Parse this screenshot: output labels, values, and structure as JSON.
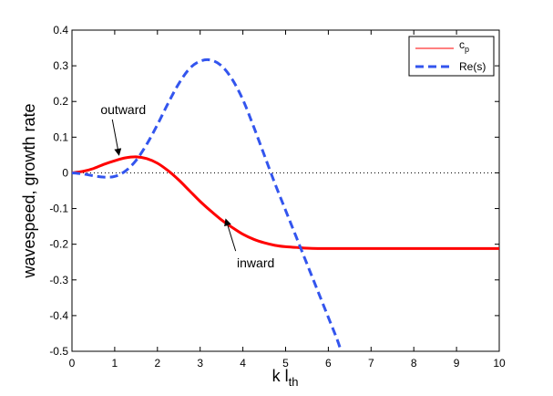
{
  "chart_data": {
    "type": "line",
    "title": "",
    "xlabel": "k l",
    "xlabel_sub": "th",
    "ylabel": "wavespeed, growth rate",
    "xlim": [
      0,
      10
    ],
    "ylim": [
      -0.5,
      0.4
    ],
    "xticks": [
      0,
      1,
      2,
      3,
      4,
      5,
      6,
      7,
      8,
      9,
      10
    ],
    "yticks": [
      -0.5,
      -0.4,
      -0.3,
      -0.2,
      -0.1,
      0,
      0.1,
      0.2,
      0.3,
      0.4
    ],
    "xtick_labels": [
      "0",
      "1",
      "2",
      "3",
      "4",
      "5",
      "6",
      "7",
      "8",
      "9",
      "10"
    ],
    "ytick_labels": [
      "-0.5",
      "-0.4",
      "-0.3",
      "-0.2",
      "-0.1",
      "0",
      "0.1",
      "0.2",
      "0.3",
      "0.4"
    ],
    "grid": false,
    "zero_line": "dotted",
    "legend_position": "top-right",
    "series": [
      {
        "name": "c",
        "name_sub": "p",
        "style": "solid",
        "color": "#ff0000",
        "x": [
          0,
          0.25,
          0.5,
          0.75,
          1.0,
          1.25,
          1.5,
          1.75,
          2.0,
          2.25,
          2.5,
          2.75,
          3.0,
          3.25,
          3.5,
          3.75,
          4.0,
          4.25,
          4.5,
          4.75,
          5.0,
          5.25,
          5.5,
          5.75,
          6.0,
          6.5,
          7.0,
          8.0,
          9.0,
          10.0
        ],
        "y": [
          0,
          0.004,
          0.012,
          0.024,
          0.034,
          0.042,
          0.045,
          0.04,
          0.027,
          0.006,
          -0.02,
          -0.05,
          -0.08,
          -0.107,
          -0.132,
          -0.153,
          -0.172,
          -0.186,
          -0.196,
          -0.203,
          -0.207,
          -0.209,
          -0.211,
          -0.212,
          -0.212,
          -0.212,
          -0.212,
          -0.212,
          -0.212,
          -0.212
        ]
      },
      {
        "name": "Re(s)",
        "style": "dashed",
        "color": "#3355ee",
        "x": [
          0,
          0.25,
          0.5,
          0.75,
          1.0,
          1.25,
          1.5,
          1.75,
          2.0,
          2.25,
          2.5,
          2.75,
          3.0,
          3.25,
          3.5,
          3.75,
          4.0,
          4.25,
          4.5,
          4.75,
          5.0,
          5.25,
          5.5,
          5.75,
          6.0,
          6.2,
          6.3
        ],
        "y": [
          0,
          -0.003,
          -0.008,
          -0.012,
          -0.01,
          0.005,
          0.035,
          0.08,
          0.135,
          0.195,
          0.25,
          0.292,
          0.313,
          0.316,
          0.3,
          0.262,
          0.205,
          0.13,
          0.05,
          -0.03,
          -0.105,
          -0.18,
          -0.255,
          -0.33,
          -0.405,
          -0.465,
          -0.5
        ]
      }
    ],
    "annotations": [
      {
        "text": "outward",
        "x": 1.2,
        "y": 0.165,
        "arrow_to": [
          1.1,
          0.05
        ]
      },
      {
        "text": "inward",
        "x": 4.3,
        "y": -0.265,
        "arrow_to": [
          3.6,
          -0.13
        ]
      }
    ]
  }
}
